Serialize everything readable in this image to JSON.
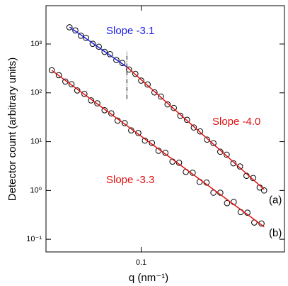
{
  "chart_data": {
    "type": "scatter",
    "x_label": "q (nm⁻¹)",
    "y_label": "Detector count (arbitrary units)",
    "xlim": [
      0.0367,
      0.452
    ],
    "ylim": [
      0.055,
      6100
    ],
    "xscale": "log",
    "yscale": "log",
    "xticks": [
      0.1
    ],
    "yticks": [
      {
        "value": 0.1,
        "label": "10⁻¹"
      },
      {
        "value": 1,
        "label": "10⁰"
      },
      {
        "value": 10,
        "label": "10¹"
      },
      {
        "value": 100,
        "label": "10²"
      },
      {
        "value": 1000,
        "label": "10³"
      }
    ],
    "series": [
      {
        "name": "(a)",
        "color": "#000000",
        "x": [
          0.047,
          0.05,
          0.053,
          0.056,
          0.06,
          0.064,
          0.068,
          0.072,
          0.077,
          0.082,
          0.088,
          0.094,
          0.1,
          0.107,
          0.115,
          0.123,
          0.132,
          0.141,
          0.151,
          0.162,
          0.174,
          0.186,
          0.2,
          0.214,
          0.23,
          0.246,
          0.264,
          0.283,
          0.303,
          0.325,
          0.348,
          0.365
        ],
        "values": [
          2200,
          1900,
          1480,
          1330,
          1010,
          880,
          690,
          620,
          470,
          410,
          300,
          245,
          178,
          148,
          102,
          84,
          58,
          49,
          34,
          28,
          19.5,
          16.2,
          11.0,
          9.3,
          6.2,
          5.4,
          3.6,
          3.1,
          2.0,
          1.8,
          1.15,
          1.0
        ]
      },
      {
        "name": "(b)",
        "color": "#000000",
        "x": [
          0.039,
          0.042,
          0.045,
          0.048,
          0.051,
          0.055,
          0.059,
          0.063,
          0.068,
          0.073,
          0.078,
          0.084,
          0.09,
          0.097,
          0.104,
          0.112,
          0.12,
          0.129,
          0.139,
          0.149,
          0.16,
          0.172,
          0.185,
          0.199,
          0.214,
          0.23,
          0.247,
          0.265,
          0.285,
          0.306,
          0.329,
          0.355
        ],
        "values": [
          290,
          230,
          170,
          150,
          112,
          95,
          70,
          61,
          44,
          38,
          27,
          24,
          17,
          15,
          10.5,
          9.4,
          6.5,
          5.9,
          3.9,
          3.7,
          2.4,
          2.3,
          1.5,
          1.45,
          0.9,
          0.9,
          0.55,
          0.58,
          0.36,
          0.35,
          0.22,
          0.21
        ]
      }
    ],
    "fit_lines": [
      {
        "label": "Slope -3.1",
        "color": "#1f1fe0",
        "x": [
          0.047,
          0.086
        ],
        "values": [
          2230,
          339
        ]
      },
      {
        "label": "Slope -4.0",
        "color": "#e01010",
        "x": [
          0.086,
          0.365
        ],
        "values": [
          339,
          1.05
        ]
      },
      {
        "label": "Slope -3.3",
        "color": "#e01010",
        "x": [
          0.039,
          0.365
        ],
        "values": [
          288,
          0.18
        ]
      }
    ],
    "marker_line": {
      "x": 0.086,
      "values": [
        75,
        700
      ]
    }
  }
}
